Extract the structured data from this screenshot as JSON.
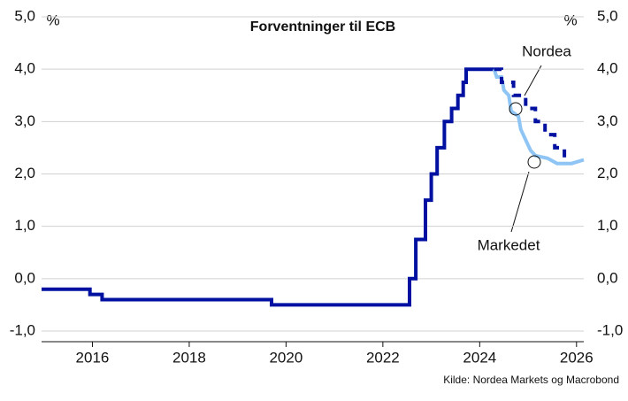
{
  "chart_data": {
    "type": "line",
    "title": "Forventninger til ECB",
    "y_unit_left": "%",
    "y_unit_right": "%",
    "source": "Kilde: Nordea Markets og Macrobond",
    "xlim": [
      2014.95,
      2026.15
    ],
    "xticks": [
      2016,
      2018,
      2020,
      2022,
      2024,
      2026
    ],
    "ylim": [
      -1,
      5
    ],
    "yticks": [
      {
        "value": -1,
        "label": "-1,0"
      },
      {
        "value": 0,
        "label": "0,0"
      },
      {
        "value": 1,
        "label": "1,0"
      },
      {
        "value": 2,
        "label": "2,0"
      },
      {
        "value": 3,
        "label": "3,0"
      },
      {
        "value": 4,
        "label": "4,0"
      },
      {
        "value": 5,
        "label": "5,0"
      }
    ],
    "grid": true,
    "series": [
      {
        "color": "#0010a0",
        "dashed": false,
        "x": [
          2014.95,
          2015.95,
          2015.95,
          2016.2,
          2016.2,
          2019.7,
          2019.7,
          2022.55,
          2022.55,
          2022.68,
          2022.68,
          2022.88,
          2022.88,
          2023.0,
          2023.0,
          2023.12,
          2023.12,
          2023.27,
          2023.27,
          2023.42,
          2023.42,
          2023.55,
          2023.55,
          2023.66,
          2023.66,
          2023.72,
          2023.72,
          2024.3
        ],
        "values": [
          -0.2,
          -0.2,
          -0.3,
          -0.3,
          -0.4,
          -0.4,
          -0.5,
          -0.5,
          0,
          0,
          0.75,
          0.75,
          1.5,
          1.5,
          2.0,
          2.0,
          2.5,
          2.5,
          3.0,
          3.0,
          3.25,
          3.25,
          3.5,
          3.5,
          3.75,
          3.75,
          4.0,
          4.0
        ]
      },
      {
        "name": "Markedet",
        "color": "#8ec5f5",
        "dashed": false,
        "x": [
          2024.3,
          2024.35,
          2024.45,
          2024.5,
          2024.6,
          2024.65,
          2024.8,
          2024.85,
          2024.95,
          2025.05,
          2025.15,
          2025.4,
          2025.6,
          2025.9,
          2026.15
        ],
        "values": [
          4.0,
          3.85,
          3.85,
          3.6,
          3.5,
          3.2,
          3.1,
          2.85,
          2.65,
          2.45,
          2.35,
          2.3,
          2.2,
          2.2,
          2.27
        ]
      },
      {
        "name": "Nordea",
        "color": "#0010a0",
        "dashed": true,
        "x": [
          2024.3,
          2024.45,
          2024.45,
          2024.7,
          2024.7,
          2024.95,
          2024.95,
          2025.15,
          2025.15,
          2025.35,
          2025.35,
          2025.55,
          2025.55,
          2025.75,
          2025.75,
          2025.8
        ],
        "values": [
          4.0,
          4.0,
          3.75,
          3.75,
          3.5,
          3.5,
          3.25,
          3.25,
          3.0,
          3.0,
          2.75,
          2.75,
          2.5,
          2.5,
          2.25,
          2.25
        ]
      }
    ]
  }
}
